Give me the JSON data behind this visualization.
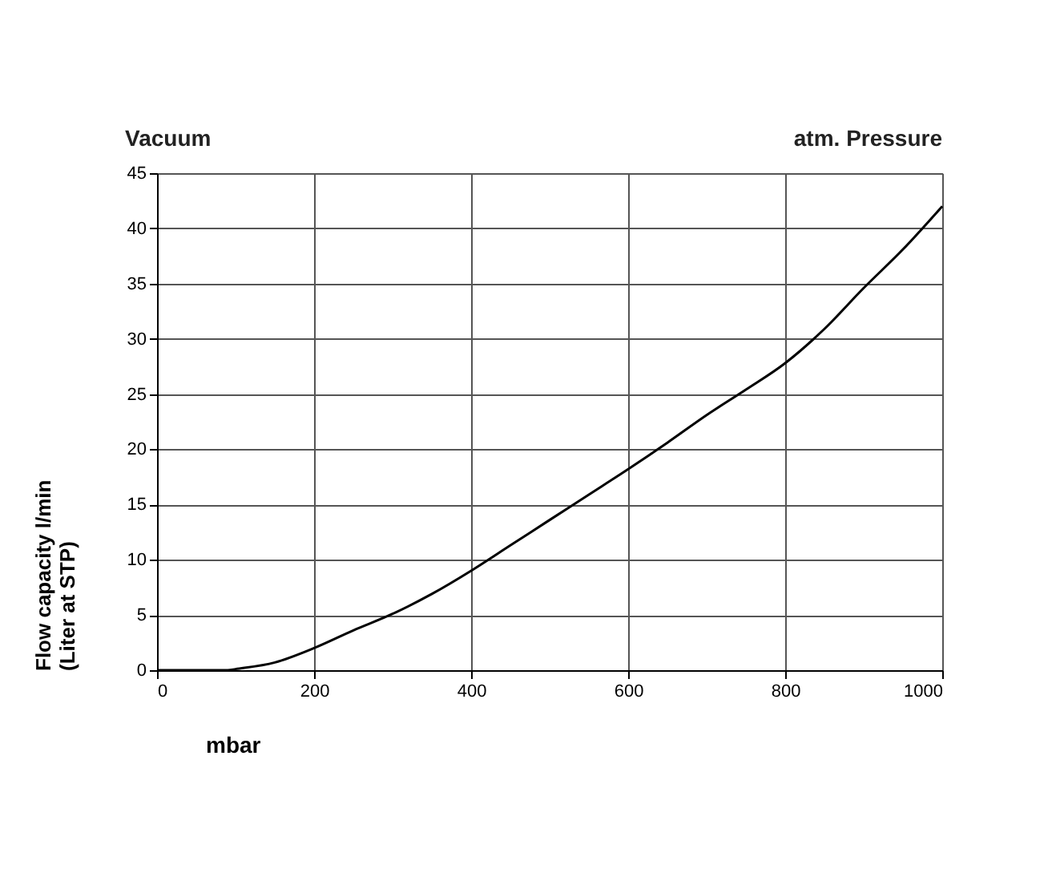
{
  "chart_data": {
    "type": "line",
    "xlabel": "mbar",
    "ylabel": "Flow capacity l/min\n(Liter at STP)",
    "annotations": [
      "Vacuum",
      "atm. Pressure"
    ],
    "x": [
      0,
      90,
      100,
      150,
      200,
      250,
      300,
      350,
      400,
      450,
      500,
      550,
      600,
      650,
      700,
      750,
      800,
      850,
      900,
      950,
      1000
    ],
    "series": [
      {
        "color": "#000000",
        "values": [
          0,
          0,
          0.1,
          0.7,
          2,
          3.6,
          5.1,
          6.9,
          9,
          11.3,
          13.6,
          15.9,
          18.2,
          20.6,
          23.1,
          25.4,
          27.8,
          30.9,
          34.6,
          38.1,
          42
        ]
      }
    ],
    "xlim": [
      0,
      1000
    ],
    "xticks": [
      0,
      200,
      400,
      600,
      800,
      1000
    ],
    "ylim": [
      0,
      45
    ],
    "yticks": [
      0,
      5,
      10,
      15,
      20,
      25,
      30,
      35,
      40,
      45
    ],
    "grid": true,
    "legend": false,
    "marker": "none",
    "line_style": "solid"
  }
}
